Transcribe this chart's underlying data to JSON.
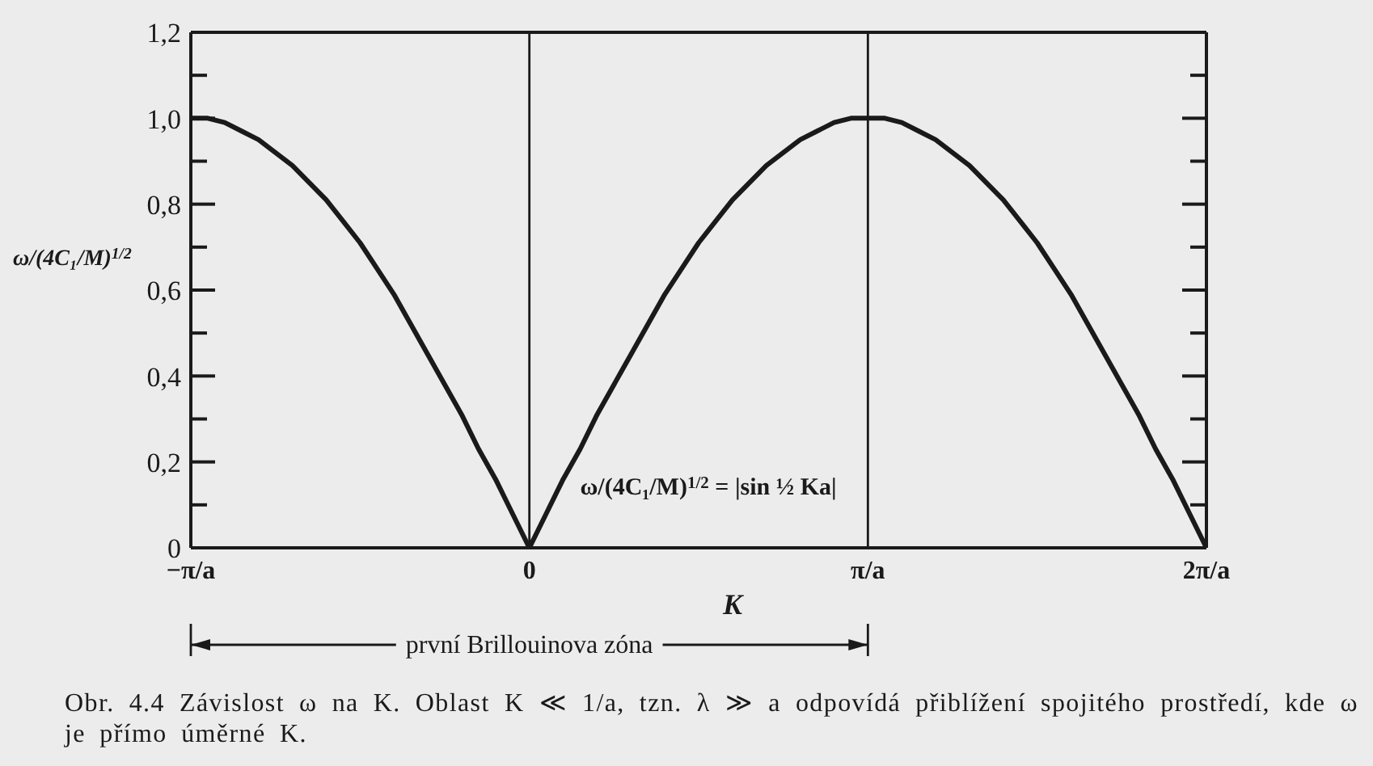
{
  "chart_data": {
    "type": "line",
    "xlabel": "K",
    "ylabel": "ω/(4C₁/M)$^{1/2}$",
    "x": [
      -1,
      -0.95,
      -0.9,
      -0.85,
      -0.8,
      -0.75,
      -0.7,
      -0.65,
      -0.6,
      -0.55,
      -0.5,
      -0.45,
      -0.4,
      -0.35,
      -0.3,
      -0.25,
      -0.2,
      -0.15,
      -0.1,
      -0.05,
      0,
      0.05,
      0.1,
      0.15,
      0.2,
      0.25,
      0.3,
      0.35,
      0.4,
      0.45,
      0.5,
      0.55,
      0.6,
      0.65,
      0.7,
      0.75,
      0.8,
      0.85,
      0.9,
      0.95,
      1,
      1.05,
      1.1,
      1.15,
      1.2,
      1.25,
      1.3,
      1.35,
      1.4,
      1.45,
      1.5,
      1.55,
      1.6,
      1.65,
      1.7,
      1.75,
      1.8,
      1.85,
      1.9,
      1.95,
      2
    ],
    "series": [
      {
        "color": "#1a1a1a",
        "values": [
          1,
          1,
          0.99,
          0.97,
          0.95,
          0.92,
          0.89,
          0.85,
          0.81,
          0.76,
          0.71,
          0.65,
          0.59,
          0.52,
          0.45,
          0.38,
          0.31,
          0.23,
          0.16,
          0.08,
          0,
          0.08,
          0.16,
          0.23,
          0.31,
          0.38,
          0.45,
          0.52,
          0.59,
          0.65,
          0.71,
          0.76,
          0.81,
          0.85,
          0.89,
          0.92,
          0.95,
          0.97,
          0.99,
          1,
          1,
          1,
          0.99,
          0.97,
          0.95,
          0.92,
          0.89,
          0.85,
          0.81,
          0.76,
          0.71,
          0.65,
          0.59,
          0.52,
          0.45,
          0.38,
          0.31,
          0.23,
          0.16,
          0.08,
          0
        ]
      }
    ],
    "xlim": [
      -1,
      2
    ],
    "xticks": [
      {
        "value": -1,
        "label": "−π/a"
      },
      0,
      {
        "value": 1,
        "label": "π/a"
      },
      {
        "value": 2,
        "label": "2π/a"
      }
    ],
    "ylim": [
      0,
      1.2
    ],
    "yticks": [
      0,
      {
        "value": 0.1,
        "label": null
      },
      {
        "value": 0.2,
        "label": "0,2"
      },
      {
        "value": 0.3,
        "label": null
      },
      {
        "value": 0.4,
        "label": "0,4"
      },
      {
        "value": 0.5,
        "label": null
      },
      {
        "value": 0.6,
        "label": "0,6"
      },
      {
        "value": 0.7,
        "label": null
      },
      {
        "value": 0.8,
        "label": "0,8"
      },
      {
        "value": 0.9,
        "label": null
      },
      {
        "value": 1,
        "label": "1,0"
      },
      {
        "value": 1.1,
        "label": null
      },
      {
        "value": 1.2,
        "label": "1,2"
      }
    ],
    "ref_lines": [
      {
        "axis": "x",
        "value": 0
      },
      {
        "axis": "x",
        "value": 1
      }
    ],
    "annotations": [
      "ω/(4C₁/M)$^{1/2}$ = |sin ½ Ka|",
      "první Brillouinova zóna",
      "Obr. 4.4 Závislost ω na K. Oblast K ≪ 1/a, tzn. λ ≫ a odpovídá přiblížení spojitého prostředí, kde ω je přímo úměrné K."
    ],
    "marker": "none",
    "line_style": "solid"
  }
}
